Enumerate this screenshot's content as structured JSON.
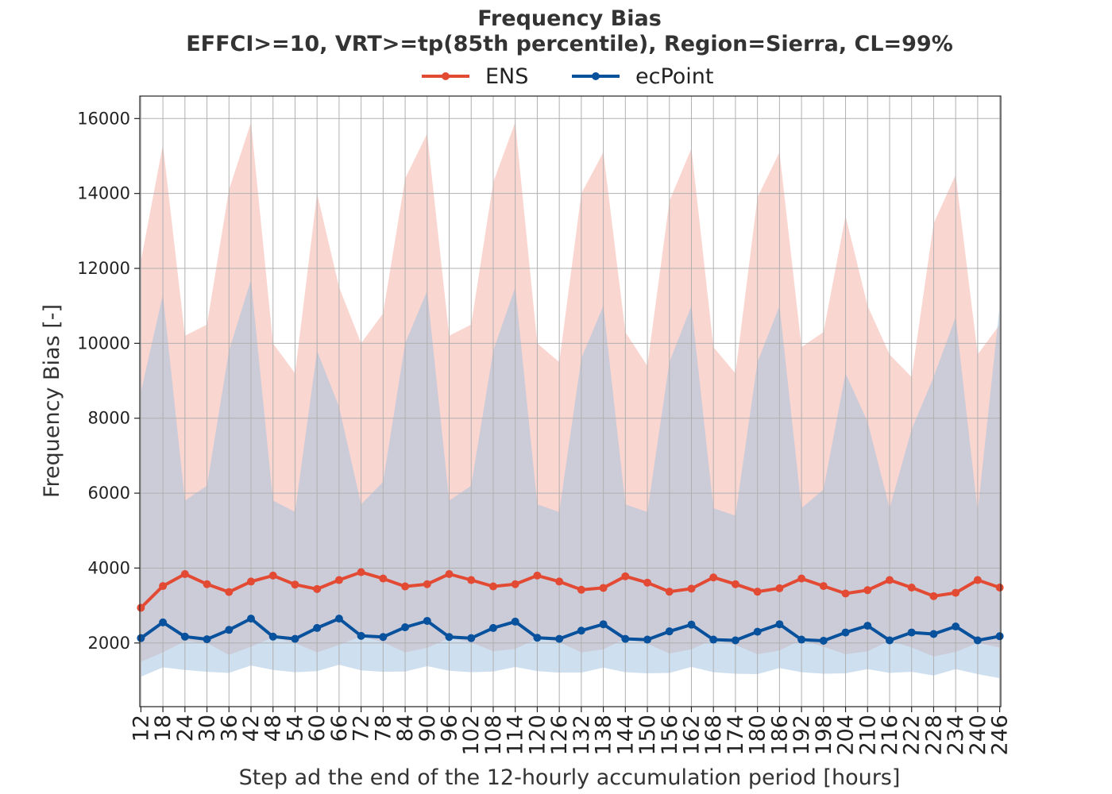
{
  "chart_data": {
    "type": "line",
    "title": "Frequency Bias",
    "subtitle": "EFFCI>=10, VRT>=tp(85th percentile), Region=Sierra, CL=99%",
    "xlabel": "Step ad the end of the 12-hourly accumulation period [hours]",
    "ylabel": "Frequency Bias [-]",
    "ylim": [
      300,
      16600
    ],
    "grid": true,
    "legend_position": "top-center",
    "x": [
      12,
      18,
      24,
      30,
      36,
      42,
      48,
      54,
      60,
      66,
      72,
      78,
      84,
      90,
      96,
      102,
      108,
      114,
      120,
      126,
      132,
      138,
      144,
      150,
      156,
      162,
      168,
      174,
      180,
      186,
      192,
      198,
      204,
      210,
      216,
      222,
      228,
      234,
      240,
      246
    ],
    "yticks": [
      2000,
      4000,
      6000,
      8000,
      10000,
      12000,
      14000,
      16000
    ],
    "series": [
      {
        "name": "ENS",
        "color": "#e34a33",
        "band_color": "#f6b5ab",
        "values": [
          2940,
          3520,
          3840,
          3570,
          3360,
          3640,
          3800,
          3560,
          3440,
          3680,
          3890,
          3720,
          3510,
          3570,
          3840,
          3680,
          3510,
          3570,
          3800,
          3640,
          3420,
          3470,
          3780,
          3610,
          3370,
          3450,
          3750,
          3570,
          3370,
          3460,
          3720,
          3520,
          3320,
          3410,
          3680,
          3480,
          3250,
          3340,
          3680,
          3480
        ],
        "lower": [
          1500,
          1750,
          2050,
          2000,
          1680,
          1900,
          2150,
          2000,
          1750,
          1950,
          2180,
          2020,
          1750,
          1870,
          2130,
          2020,
          1780,
          1840,
          2120,
          2020,
          1750,
          1830,
          2120,
          1980,
          1720,
          1830,
          2100,
          1950,
          1700,
          1800,
          2080,
          1900,
          1700,
          1780,
          2060,
          1880,
          1640,
          1760,
          2000,
          1880
        ],
        "upper": [
          12200,
          15300,
          10200,
          10500,
          14100,
          15900,
          10000,
          9200,
          14000,
          11500,
          10000,
          10800,
          14400,
          15600,
          10200,
          10500,
          14300,
          15900,
          10000,
          9500,
          14000,
          15100,
          10300,
          9400,
          13800,
          15200,
          9900,
          9200,
          13900,
          15100,
          9900,
          10300,
          13400,
          11000,
          9700,
          9100,
          13200,
          14500,
          9700,
          10500
        ]
      },
      {
        "name": "ecPoint",
        "color": "#08519c",
        "band_color": "#9ebfe0",
        "values": [
          2130,
          2550,
          2170,
          2100,
          2350,
          2650,
          2170,
          2110,
          2400,
          2650,
          2190,
          2160,
          2420,
          2590,
          2160,
          2130,
          2400,
          2570,
          2140,
          2110,
          2330,
          2500,
          2110,
          2090,
          2310,
          2490,
          2090,
          2070,
          2300,
          2500,
          2090,
          2060,
          2280,
          2460,
          2070,
          2280,
          2240,
          2440,
          2070,
          2180
        ],
        "lower": [
          1100,
          1350,
          1280,
          1230,
          1200,
          1400,
          1280,
          1220,
          1250,
          1420,
          1270,
          1230,
          1240,
          1380,
          1260,
          1220,
          1240,
          1360,
          1250,
          1210,
          1210,
          1340,
          1220,
          1190,
          1200,
          1360,
          1220,
          1180,
          1170,
          1330,
          1220,
          1180,
          1190,
          1300,
          1200,
          1230,
          1130,
          1300,
          1170,
          1060
        ],
        "upper": [
          8700,
          11300,
          5800,
          6200,
          9800,
          11700,
          5800,
          5500,
          9800,
          8300,
          5700,
          6300,
          10000,
          11400,
          5800,
          6200,
          9800,
          11500,
          5700,
          5500,
          9600,
          11000,
          5700,
          5500,
          9500,
          11000,
          5600,
          5400,
          9500,
          11000,
          5600,
          6100,
          9200,
          7900,
          5600,
          7700,
          9100,
          10700,
          5500,
          11000
        ]
      }
    ]
  }
}
